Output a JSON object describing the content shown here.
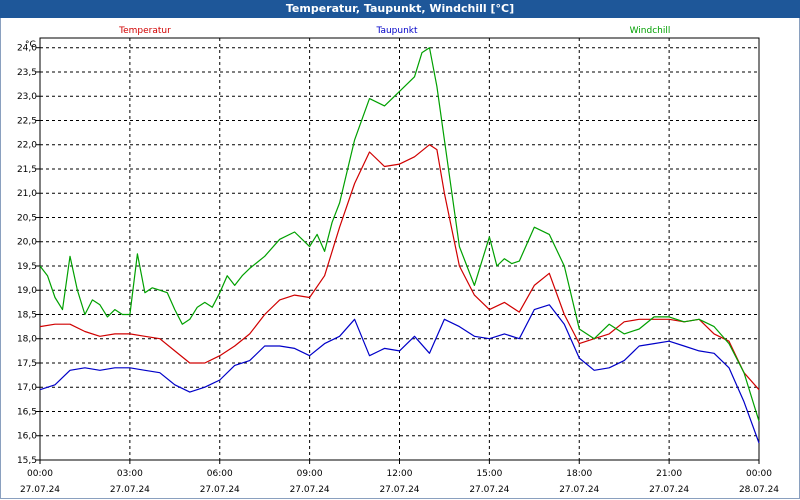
{
  "window": {
    "title": "Temperatur, Taupunkt, Windchill [°C]"
  },
  "colors": {
    "temperatur": "#d00000",
    "taupunkt": "#0000c8",
    "windchill": "#00a000",
    "grid": "#000000",
    "titlebar": "#1e5799"
  },
  "chart_data": {
    "type": "line",
    "title": "Temperatur, Taupunkt, Windchill [°C]",
    "ylabel": "°C",
    "ylim": [
      15.5,
      24.2
    ],
    "yticks": [
      "15,5",
      "16,0",
      "16,5",
      "17,0",
      "17,5",
      "18,0",
      "18,5",
      "19,0",
      "19,5",
      "20,0",
      "20,5",
      "21,0",
      "21,5",
      "22,0",
      "22,5",
      "23,0",
      "23,5",
      "24,0"
    ],
    "xlim": [
      0,
      24
    ],
    "xticks": [
      {
        "time": "00:00",
        "date": "27.07.24"
      },
      {
        "time": "03:00",
        "date": "27.07.24"
      },
      {
        "time": "06:00",
        "date": "27.07.24"
      },
      {
        "time": "09:00",
        "date": "27.07.24"
      },
      {
        "time": "12:00",
        "date": "27.07.24"
      },
      {
        "time": "15:00",
        "date": "27.07.24"
      },
      {
        "time": "18:00",
        "date": "27.07.24"
      },
      {
        "time": "21:00",
        "date": "27.07.24"
      },
      {
        "time": "00:00",
        "date": "28.07.24"
      }
    ],
    "grid": true,
    "legend": "top",
    "series": [
      {
        "name": "Temperatur",
        "color": "#d00000",
        "x": [
          0,
          0.5,
          1,
          1.5,
          2,
          2.5,
          3,
          3.5,
          4,
          4.5,
          5,
          5.5,
          6,
          6.5,
          7,
          7.5,
          8,
          8.5,
          9,
          9.5,
          10,
          10.5,
          11,
          11.5,
          12,
          12.5,
          13,
          13.25,
          13.5,
          14,
          14.5,
          15,
          15.5,
          16,
          16.5,
          17,
          17.5,
          18,
          18.5,
          19,
          19.5,
          20,
          20.5,
          21,
          21.5,
          22,
          22.5,
          23,
          23.5,
          24
        ],
        "values": [
          18.25,
          18.3,
          18.3,
          18.15,
          18.05,
          18.1,
          18.1,
          18.05,
          18.0,
          17.75,
          17.5,
          17.5,
          17.65,
          17.85,
          18.1,
          18.5,
          18.8,
          18.9,
          18.85,
          19.3,
          20.3,
          21.2,
          21.85,
          21.55,
          21.6,
          21.75,
          22.0,
          21.9,
          21.0,
          19.5,
          18.9,
          18.6,
          18.75,
          18.55,
          19.1,
          19.35,
          18.5,
          17.9,
          18.0,
          18.1,
          18.35,
          18.4,
          18.4,
          18.4,
          18.35,
          18.4,
          18.1,
          17.95,
          17.3,
          16.95
        ]
      },
      {
        "name": "Taupunkt",
        "color": "#0000c8",
        "x": [
          0,
          0.5,
          1,
          1.5,
          2,
          2.5,
          3,
          3.5,
          4,
          4.5,
          5,
          5.5,
          6,
          6.5,
          7,
          7.5,
          8,
          8.5,
          9,
          9.5,
          10,
          10.5,
          11,
          11.5,
          12,
          12.5,
          13,
          13.5,
          14,
          14.5,
          15,
          15.5,
          16,
          16.5,
          17,
          17.5,
          18,
          18.5,
          19,
          19.5,
          20,
          20.5,
          21,
          21.5,
          22,
          22.5,
          23,
          23.5,
          24
        ],
        "values": [
          16.95,
          17.05,
          17.35,
          17.4,
          17.35,
          17.4,
          17.4,
          17.35,
          17.3,
          17.05,
          16.9,
          17.0,
          17.15,
          17.45,
          17.55,
          17.85,
          17.85,
          17.8,
          17.65,
          17.9,
          18.05,
          18.4,
          17.65,
          17.8,
          17.75,
          18.05,
          17.7,
          18.4,
          18.25,
          18.05,
          18.0,
          18.1,
          18.0,
          18.6,
          18.7,
          18.3,
          17.6,
          17.35,
          17.4,
          17.55,
          17.85,
          17.9,
          17.95,
          17.85,
          17.75,
          17.7,
          17.4,
          16.7,
          15.85
        ]
      },
      {
        "name": "Windchill",
        "color": "#00a000",
        "x": [
          0,
          0.25,
          0.5,
          0.75,
          1,
          1.25,
          1.5,
          1.75,
          2,
          2.25,
          2.5,
          2.75,
          3,
          3.25,
          3.5,
          3.75,
          4,
          4.25,
          4.5,
          4.75,
          5,
          5.25,
          5.5,
          5.75,
          6,
          6.25,
          6.5,
          6.75,
          7,
          7.5,
          8,
          8.5,
          9,
          9.25,
          9.5,
          9.75,
          10,
          10.5,
          11,
          11.5,
          12,
          12.5,
          12.75,
          13,
          13.25,
          13.5,
          14,
          14.5,
          15,
          15.25,
          15.5,
          15.75,
          16,
          16.5,
          17,
          17.5,
          18,
          18.5,
          19,
          19.5,
          20,
          20.5,
          21,
          21.5,
          22,
          22.5,
          23,
          23.5,
          24
        ],
        "values": [
          19.5,
          19.3,
          18.85,
          18.6,
          19.7,
          19.0,
          18.5,
          18.8,
          18.7,
          18.45,
          18.6,
          18.5,
          18.5,
          19.75,
          18.95,
          19.05,
          19.0,
          18.95,
          18.6,
          18.3,
          18.4,
          18.65,
          18.75,
          18.65,
          18.95,
          19.3,
          19.1,
          19.3,
          19.45,
          19.7,
          20.05,
          20.2,
          19.9,
          20.15,
          19.8,
          20.4,
          20.8,
          22.1,
          22.95,
          22.8,
          23.1,
          23.4,
          23.9,
          24.0,
          23.2,
          22.1,
          19.9,
          19.1,
          20.1,
          19.5,
          19.65,
          19.55,
          19.6,
          20.3,
          20.15,
          19.5,
          18.2,
          18.0,
          18.3,
          18.1,
          18.2,
          18.45,
          18.45,
          18.35,
          18.4,
          18.25,
          17.9,
          17.3,
          16.3
        ]
      }
    ]
  }
}
